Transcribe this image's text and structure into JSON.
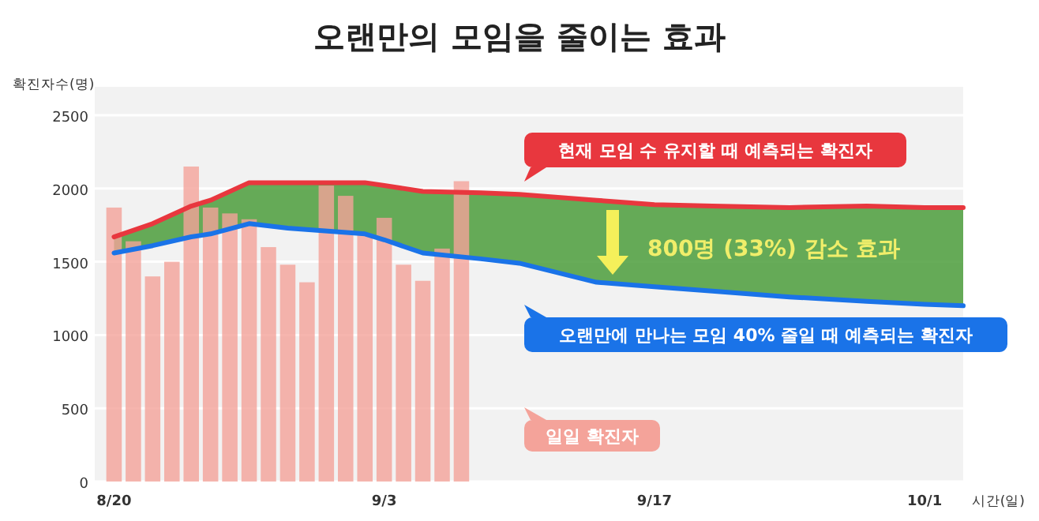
{
  "chart_data": {
    "type": "bar",
    "title": "오랜만의 모임을 줄이는 효과",
    "ylabel": "확진자수(명)",
    "xlabel": "시간(일)",
    "xlim": [
      "--08-19",
      "--10-03"
    ],
    "ylim": [
      0,
      2500
    ],
    "yticks": [
      0,
      500,
      1000,
      1500,
      2000,
      2500
    ],
    "xticks": [
      {
        "value": "--08-20",
        "label": "8/20"
      },
      {
        "value": "--09-03",
        "label": "9/3"
      },
      {
        "value": "--09-17",
        "label": "9/17"
      },
      {
        "value": "--10-01",
        "label": "10/1"
      }
    ],
    "grid": "y",
    "legend": "right",
    "annotations": [
      "800명 (33%) 감소 효과"
    ],
    "series": [
      {
        "name": "일일 확진자",
        "color": "#f4a39a",
        "x": [
          "--08-20",
          "--08-21",
          "--08-22",
          "--08-23",
          "--08-24",
          "--08-25",
          "--08-26",
          "--08-27",
          "--08-28",
          "--08-29",
          "--08-30",
          "--08-31",
          "--09-01",
          "--09-02",
          "--09-03",
          "--09-04",
          "--09-05",
          "--09-06",
          "--09-07"
        ],
        "values": [
          1870,
          1640,
          1400,
          1500,
          2150,
          1870,
          1830,
          1790,
          1600,
          1480,
          1360,
          2020,
          1950,
          1690,
          1800,
          1480,
          1370,
          1590,
          2050
        ]
      },
      {
        "name": "현재 모임 수 유지할 때 예측되는 확진자",
        "type": "line",
        "color": "#e8373e",
        "x": [
          "--08-20",
          "--08-22",
          "--08-24",
          "--08-25",
          "--08-27",
          "--08-29",
          "--09-02",
          "--09-03",
          "--09-05",
          "--09-08",
          "--09-10",
          "--09-14",
          "--09-17",
          "--09-20",
          "--09-24",
          "--09-28",
          "--10-01",
          "--10-03"
        ],
        "values": [
          1670,
          1760,
          1880,
          1920,
          2040,
          2040,
          2040,
          2020,
          1980,
          1970,
          1960,
          1920,
          1890,
          1880,
          1870,
          1880,
          1870,
          1870
        ],
        "lower": [
          1560,
          1610,
          1670,
          1690,
          1760,
          1730,
          1690,
          1650,
          1560,
          1520,
          1490,
          1360,
          1330,
          1300,
          1260,
          1230,
          1210,
          1200
        ],
        "upper": [
          1670,
          1760,
          1880,
          1920,
          2040,
          2040,
          2040,
          2020,
          1980,
          1970,
          1960,
          1920,
          1890,
          1880,
          1870,
          1880,
          1870,
          1870
        ]
      },
      {
        "name": "오랜만에 만나는 모임 40% 줄일 때 예측되는 확진자",
        "type": "line",
        "color": "#1a73e8",
        "x": [
          "--08-20",
          "--08-22",
          "--08-24",
          "--08-25",
          "--08-27",
          "--08-29",
          "--09-02",
          "--09-03",
          "--09-05",
          "--09-08",
          "--09-10",
          "--09-14",
          "--09-17",
          "--09-20",
          "--09-24",
          "--09-28",
          "--10-01",
          "--10-03"
        ],
        "values": [
          1560,
          1610,
          1670,
          1690,
          1760,
          1730,
          1690,
          1650,
          1560,
          1520,
          1490,
          1360,
          1330,
          1300,
          1260,
          1230,
          1210,
          1200
        ]
      }
    ]
  }
}
